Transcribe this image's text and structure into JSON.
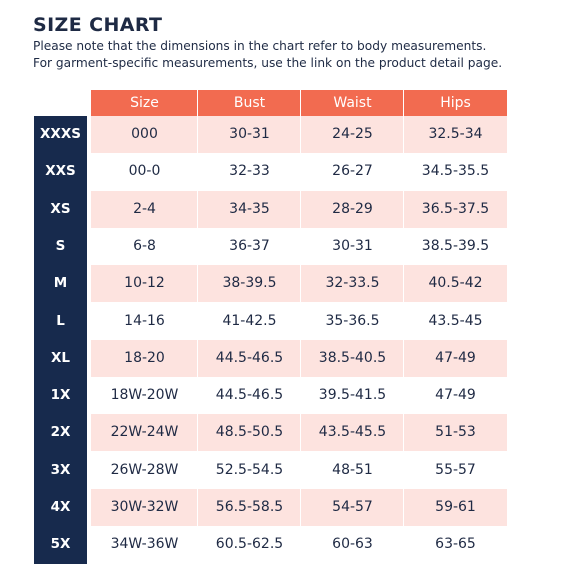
{
  "title": "SIZE CHART",
  "note_line1": "Please note that the dimensions in the chart refer to body measurements.",
  "note_line2": "For garment-specific measurements, use the link on the product detail page.",
  "colors": {
    "header_bg": "#f26b50",
    "label_col_bg": "#172a4d",
    "stripe_bg": "#fde3df",
    "text": "#1f2a44"
  },
  "columns": [
    "Size",
    "Bust",
    "Waist",
    "Hips"
  ],
  "rows": [
    {
      "label": "XXXS",
      "cells": [
        "000",
        "30-31",
        "24-25",
        "32.5-34"
      ]
    },
    {
      "label": "XXS",
      "cells": [
        "00-0",
        "32-33",
        "26-27",
        "34.5-35.5"
      ]
    },
    {
      "label": "XS",
      "cells": [
        "2-4",
        "34-35",
        "28-29",
        "36.5-37.5"
      ]
    },
    {
      "label": "S",
      "cells": [
        "6-8",
        "36-37",
        "30-31",
        "38.5-39.5"
      ]
    },
    {
      "label": "M",
      "cells": [
        "10-12",
        "38-39.5",
        "32-33.5",
        "40.5-42"
      ]
    },
    {
      "label": "L",
      "cells": [
        "14-16",
        "41-42.5",
        "35-36.5",
        "43.5-45"
      ]
    },
    {
      "label": "XL",
      "cells": [
        "18-20",
        "44.5-46.5",
        "38.5-40.5",
        "47-49"
      ]
    },
    {
      "label": "1X",
      "cells": [
        "18W-20W",
        "44.5-46.5",
        "39.5-41.5",
        "47-49"
      ]
    },
    {
      "label": "2X",
      "cells": [
        "22W-24W",
        "48.5-50.5",
        "43.5-45.5",
        "51-53"
      ]
    },
    {
      "label": "3X",
      "cells": [
        "26W-28W",
        "52.5-54.5",
        "48-51",
        "55-57"
      ]
    },
    {
      "label": "4X",
      "cells": [
        "30W-32W",
        "56.5-58.5",
        "54-57",
        "59-61"
      ]
    },
    {
      "label": "5X",
      "cells": [
        "34W-36W",
        "60.5-62.5",
        "60-63",
        "63-65"
      ]
    }
  ]
}
